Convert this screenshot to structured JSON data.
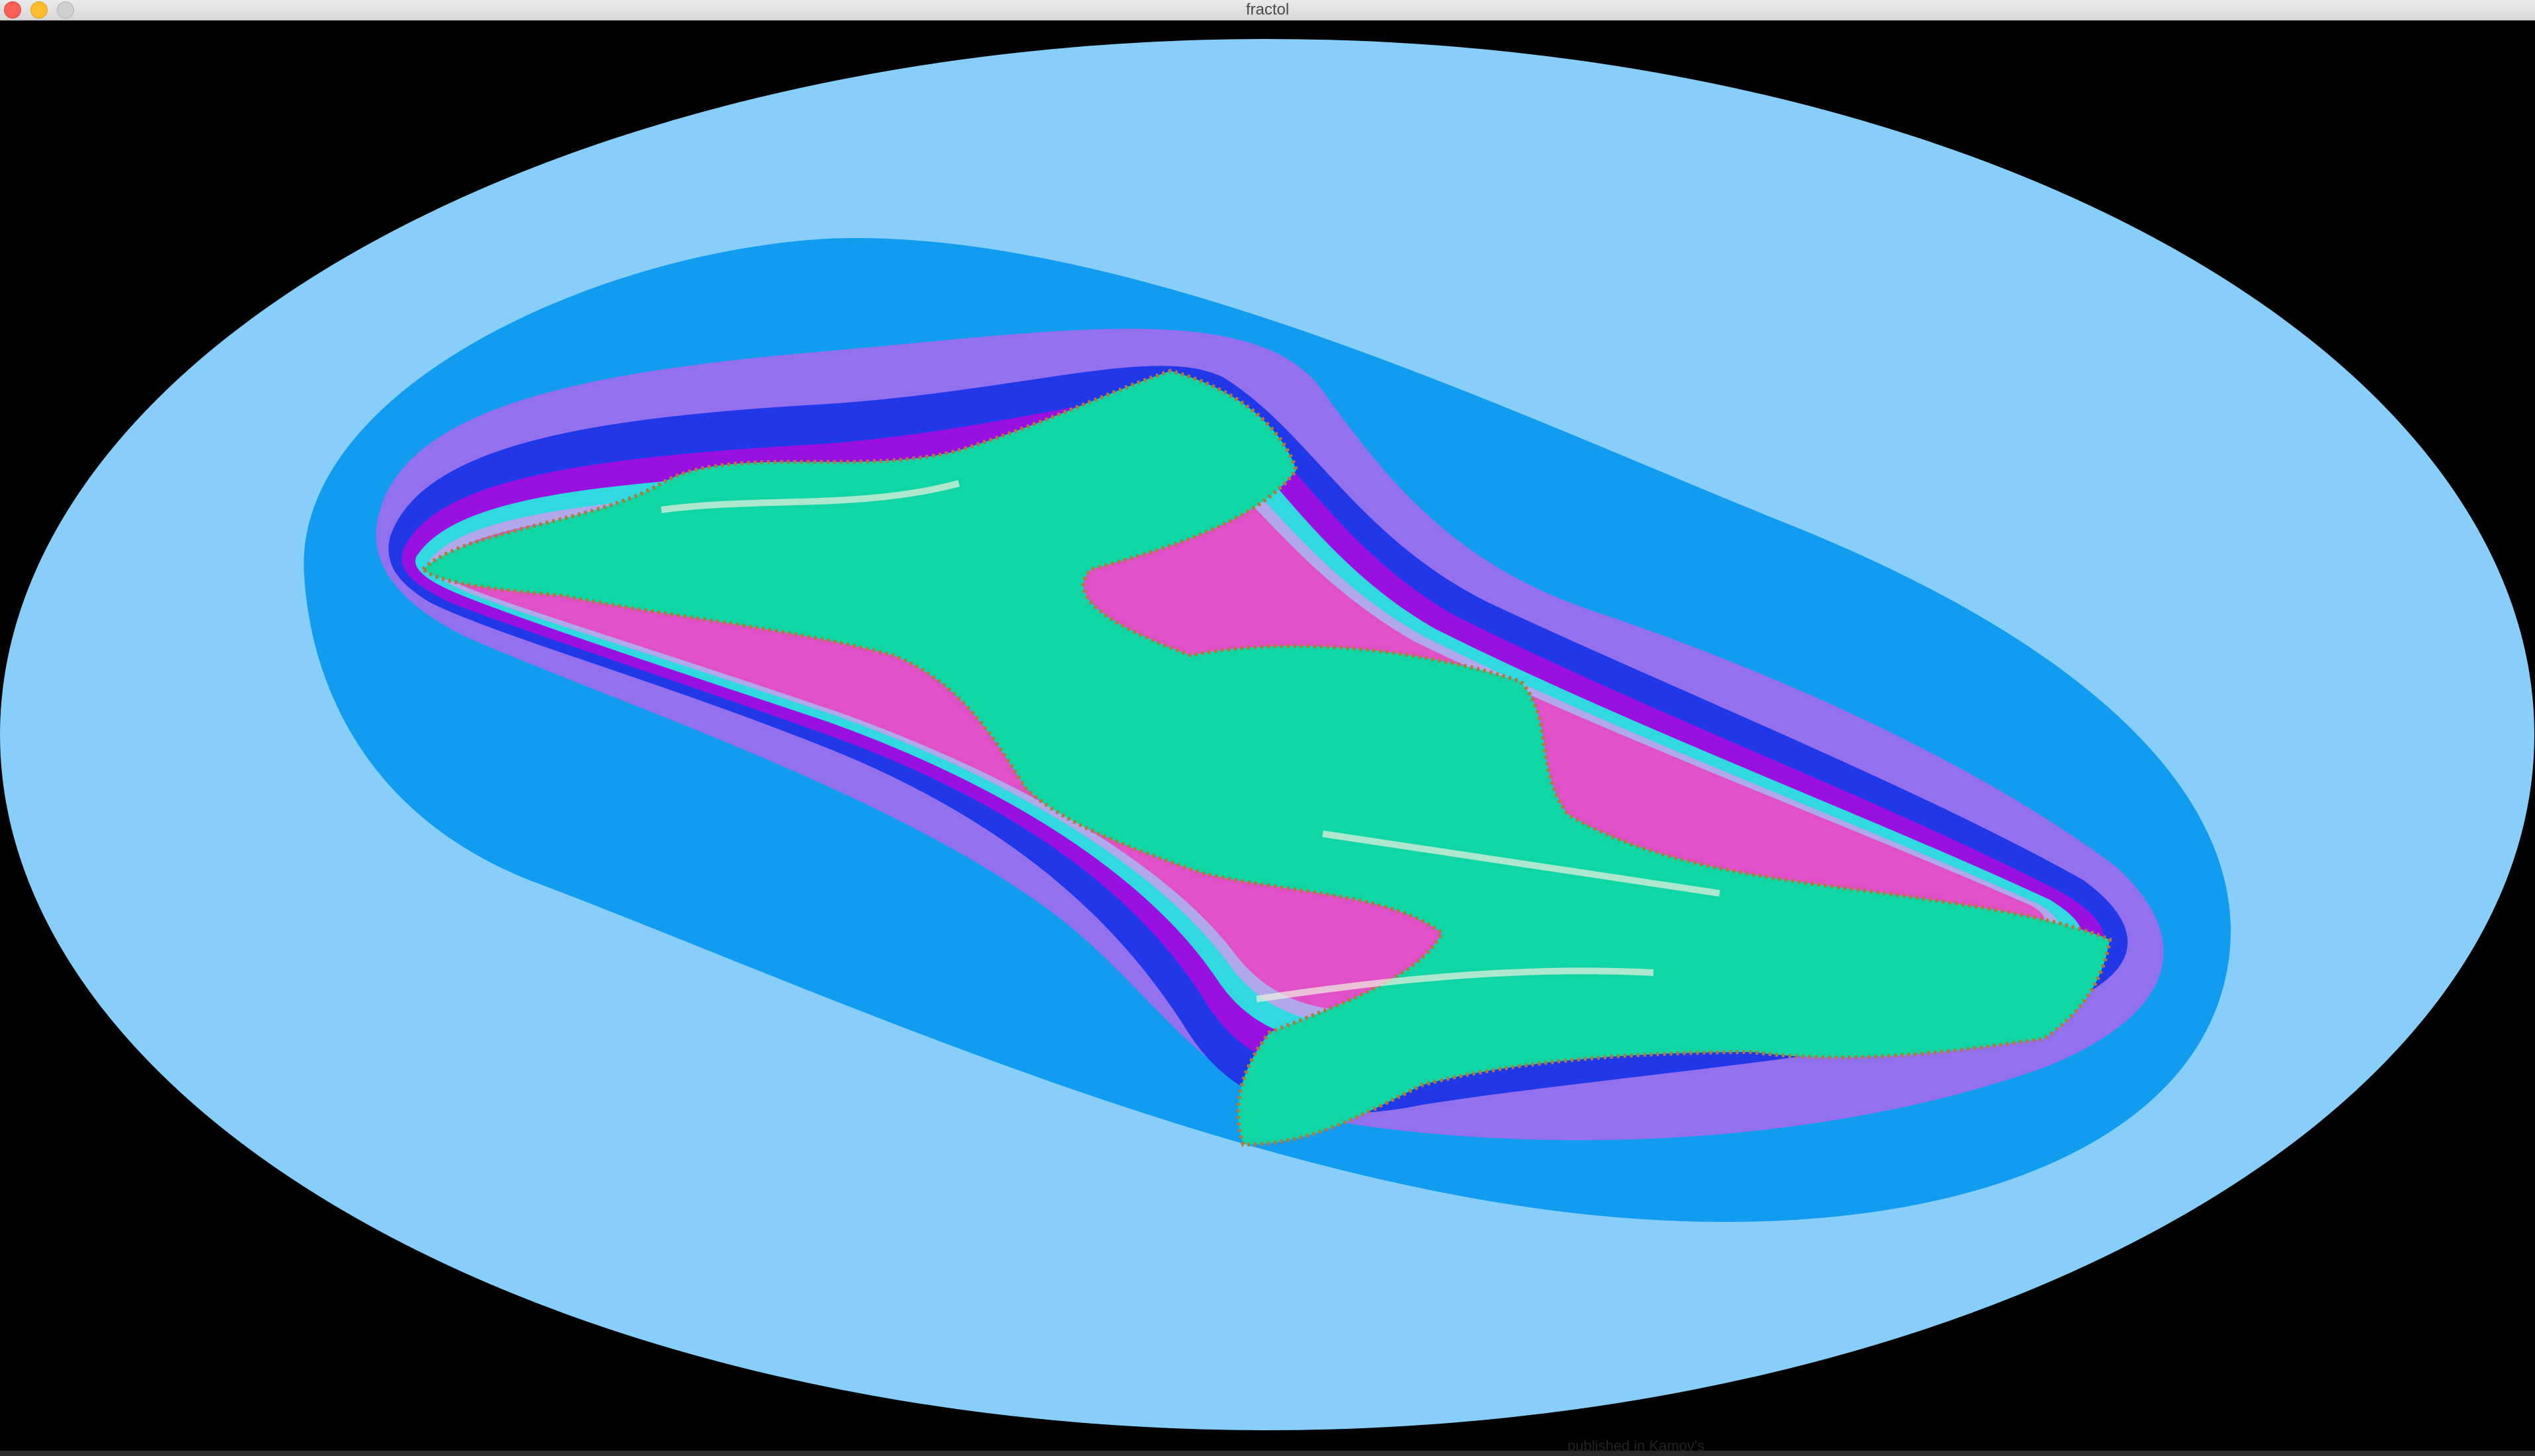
{
  "window": {
    "title": "fractol"
  },
  "colors": {
    "background": "#000000",
    "band_1": "#87cefa",
    "band_2": "#129cf0",
    "band_3": "#9370ee",
    "band_4": "#2038e8",
    "band_5": "#9a10e0",
    "band_6": "#30d8e0",
    "band_7": "#b0a8e8",
    "band_8": "#e050c8",
    "band_9": "#f0f0e0",
    "interior": "#10d6a6"
  },
  "bottom_overlay_text": "published in Kamov's"
}
